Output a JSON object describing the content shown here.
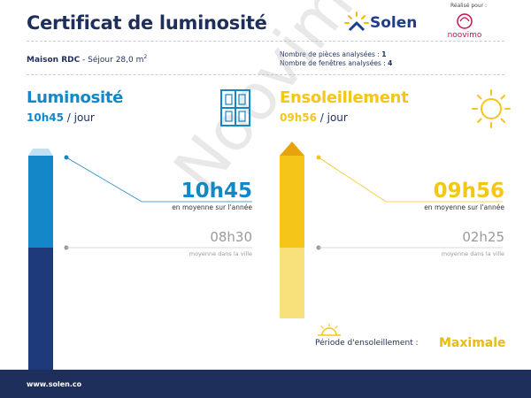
{
  "header": {
    "title": "Certificat de luminosité",
    "solen_label": "Solen",
    "realise_label": "Réalisé pour :",
    "noovimo_label": "noovimo"
  },
  "property": {
    "name": "Maison RDC",
    "room": " - Séjour 28,0 m",
    "superscript": "2",
    "rooms_label": "Nombre de pièces analysées : ",
    "rooms_value": "1",
    "windows_label": "Nombre de fenêtres analysées : ",
    "windows_value": "4"
  },
  "luminosity": {
    "title": "Luminosité",
    "sub_value": "10h45",
    "sub_unit": " / jour",
    "main_value": "10h45",
    "main_caption": "en moyenne sur l'année",
    "city_value": "08h30",
    "city_caption": "moyenne dans la ville",
    "color": "#1487c9",
    "dark_color": "#1f3a7a",
    "light_color": "#bfe0f5",
    "bar_fraction": 0.45
  },
  "sunshine": {
    "title": "Ensoleillement",
    "sub_value": "09h56",
    "sub_unit": " / jour",
    "main_value": "09h56",
    "main_caption": "en moyenne sur l'année",
    "city_value": "02h25",
    "city_caption": "moyenne dans la ville",
    "period_label": "Période d'ensoleillement :",
    "period_value": "Maximale",
    "color": "#f5c518",
    "dark_color": "#e8a20c",
    "light_color": "#f8e07a"
  },
  "watermark": "Noovimo",
  "footer": {
    "url": "www.solen.co"
  },
  "icons": {
    "window": "window-icon",
    "sun": "sun-icon",
    "sunset": "sunset-icon",
    "solen_logo": "solen-logo-icon",
    "noovimo_logo": "noovimo-logo-icon"
  }
}
